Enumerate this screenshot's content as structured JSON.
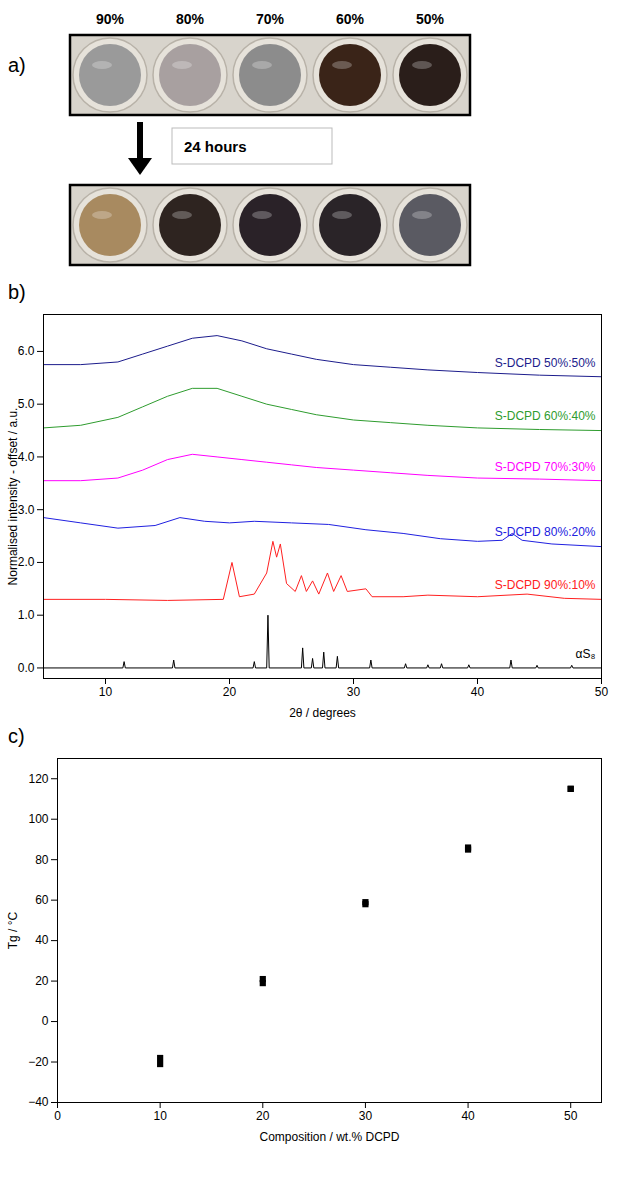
{
  "photo_panel": {
    "panel_label": "a)",
    "compositions": [
      "90%",
      "80%",
      "70%",
      "60%",
      "50%"
    ],
    "interval": "24 hours"
  },
  "chart_data": [
    {
      "panel_label": "b)",
      "type": "line",
      "x_label": "2θ / degrees",
      "y_label": "Normalised intensity - offset / a.u.",
      "xlim": [
        5,
        50
      ],
      "xticks": [
        10,
        20,
        30,
        40,
        50
      ],
      "ylim": [
        -0.2,
        6.7
      ],
      "yticks": [
        0,
        1,
        2,
        3,
        4,
        5,
        6
      ],
      "grid": false,
      "series": [
        {
          "name": "S-DCPD 50%:50%",
          "color": "#1c1c8c",
          "x": [
            5,
            8,
            11,
            13,
            15,
            17,
            19,
            21,
            23,
            25,
            27,
            30,
            33,
            36,
            40,
            45,
            50
          ],
          "values": [
            5.75,
            5.75,
            5.8,
            5.95,
            6.1,
            6.25,
            6.3,
            6.2,
            6.05,
            5.95,
            5.85,
            5.75,
            5.7,
            5.65,
            5.6,
            5.55,
            5.52
          ]
        },
        {
          "name": "S-DCPD 60%:40%",
          "color": "#2e9c2e",
          "x": [
            5,
            8,
            11,
            13,
            15,
            17,
            19,
            21,
            23,
            25,
            27,
            30,
            33,
            36,
            40,
            45,
            50
          ],
          "values": [
            4.55,
            4.6,
            4.75,
            4.95,
            5.15,
            5.3,
            5.3,
            5.15,
            5.0,
            4.9,
            4.8,
            4.7,
            4.65,
            4.6,
            4.55,
            4.52,
            4.5
          ]
        },
        {
          "name": "S-DCPD 70%:30%",
          "color": "#ff00ff",
          "x": [
            5,
            8,
            11,
            13,
            15,
            17,
            19,
            21,
            23,
            25,
            27,
            30,
            33,
            36,
            40,
            45,
            50
          ],
          "values": [
            3.55,
            3.55,
            3.6,
            3.75,
            3.95,
            4.05,
            4.0,
            3.95,
            3.9,
            3.85,
            3.8,
            3.75,
            3.7,
            3.65,
            3.6,
            3.58,
            3.55
          ]
        },
        {
          "name": "S-DCPD 80%:20%",
          "color": "#2020e0",
          "x": [
            5,
            8,
            11,
            14,
            16,
            18,
            20,
            22,
            25,
            28,
            31,
            34,
            37,
            40,
            42,
            42.8,
            43.6,
            46,
            50
          ],
          "values": [
            2.85,
            2.75,
            2.65,
            2.7,
            2.85,
            2.78,
            2.75,
            2.78,
            2.75,
            2.72,
            2.62,
            2.55,
            2.45,
            2.4,
            2.42,
            2.55,
            2.42,
            2.35,
            2.3
          ]
        },
        {
          "name": "S-DCPD 90%:10%",
          "color": "#ff2020",
          "x": [
            5,
            10,
            15,
            19.5,
            20.2,
            20.8,
            22,
            23.0,
            23.5,
            23.8,
            24.1,
            24.6,
            25.3,
            25.8,
            26.2,
            26.7,
            27.2,
            27.9,
            28.4,
            29.0,
            29.5,
            31.0,
            31.5,
            34,
            36,
            40,
            44,
            47,
            50
          ],
          "values": [
            1.3,
            1.3,
            1.28,
            1.3,
            2.0,
            1.35,
            1.4,
            1.8,
            2.4,
            2.1,
            2.35,
            1.6,
            1.45,
            1.75,
            1.45,
            1.65,
            1.4,
            1.8,
            1.45,
            1.75,
            1.45,
            1.5,
            1.35,
            1.35,
            1.38,
            1.35,
            1.4,
            1.32,
            1.3
          ]
        },
        {
          "name": "αS₈",
          "color": "#000000",
          "x": [
            5,
            11.4,
            11.5,
            11.6,
            15.4,
            15.5,
            15.6,
            21.9,
            22.0,
            22.1,
            23.0,
            23.1,
            23.2,
            25.8,
            25.9,
            26.0,
            26.6,
            26.7,
            26.8,
            27.5,
            27.6,
            27.7,
            28.6,
            28.7,
            28.8,
            31.3,
            31.4,
            31.5,
            34.1,
            34.2,
            34.3,
            35.9,
            36.0,
            36.1,
            37.0,
            37.1,
            37.2,
            39.2,
            39.3,
            39.4,
            42.6,
            42.7,
            42.8,
            44.7,
            44.8,
            44.9,
            47.5,
            47.6,
            47.7,
            50
          ],
          "values": [
            0,
            0,
            0.12,
            0,
            0,
            0.15,
            0,
            0,
            0.12,
            0,
            0,
            1.0,
            0,
            0,
            0.38,
            0,
            0,
            0.18,
            0,
            0,
            0.3,
            0,
            0,
            0.22,
            0,
            0,
            0.15,
            0,
            0,
            0.08,
            0,
            0,
            0.06,
            0,
            0,
            0.08,
            0,
            0,
            0.06,
            0,
            0,
            0.15,
            0,
            0,
            0.05,
            0,
            0,
            0.05,
            0,
            0
          ]
        }
      ]
    },
    {
      "panel_label": "c)",
      "type": "scatter",
      "x_label": "Composition / wt.% DCPD",
      "y_label": "Tg / °C",
      "xlim": [
        0,
        53
      ],
      "xticks": [
        0,
        10,
        20,
        30,
        40,
        50
      ],
      "ylim": [
        -40,
        130
      ],
      "yticks": [
        -40,
        -20,
        0,
        20,
        40,
        60,
        80,
        100,
        120
      ],
      "grid": false,
      "marker": "square",
      "color": "#000000",
      "x": [
        10,
        10,
        20,
        20,
        30,
        30,
        40,
        40,
        50,
        50
      ],
      "values": [
        -18,
        -21,
        19,
        21,
        58,
        59,
        85,
        86,
        115,
        115
      ]
    }
  ]
}
